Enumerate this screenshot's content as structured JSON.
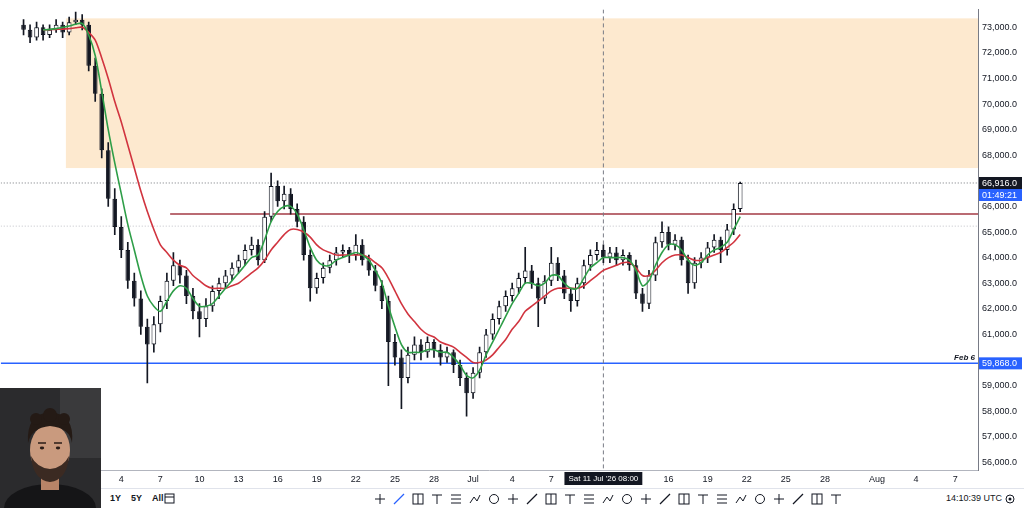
{
  "chart_data": {
    "type": "candlestick",
    "color": "#131722",
    "grid": false,
    "categories": [
      null,
      null,
      null,
      null,
      null,
      null,
      null,
      null,
      null,
      null,
      null,
      null,
      null,
      null,
      null,
      null,
      null,
      null,
      "4",
      null,
      null,
      null,
      null,
      null,
      "7",
      null,
      null,
      null,
      null,
      null,
      "10",
      null,
      null,
      null,
      null,
      null,
      "13",
      null,
      null,
      null,
      null,
      null,
      "16",
      null,
      null,
      null,
      null,
      null,
      "19",
      null,
      null,
      null,
      null,
      null,
      "22",
      null,
      null,
      null,
      null,
      null,
      "25",
      null,
      null,
      null,
      null,
      null,
      "28",
      null,
      null,
      null,
      null,
      null,
      "Jul",
      null,
      null,
      null,
      null,
      null,
      "4",
      null,
      null,
      null,
      null,
      null,
      "7",
      null,
      null,
      null,
      null,
      null,
      null,
      null,
      null,
      null,
      null,
      null,
      null,
      null,
      null,
      null,
      null,
      null,
      "16",
      null,
      null,
      null,
      null,
      null,
      "19",
      null,
      null,
      null,
      null,
      null,
      "22",
      null,
      null,
      null,
      null,
      null,
      "25",
      null,
      null,
      null,
      null,
      null,
      "28",
      null,
      null,
      null,
      null,
      null,
      null,
      null,
      "Aug",
      null,
      null,
      null,
      null,
      null,
      "4",
      null,
      null,
      null,
      null,
      null,
      "7",
      null,
      null,
      null
    ],
    "open": [
      null,
      null,
      null,
      73100,
      72900,
      72600,
      73000,
      72700,
      72900,
      73100,
      72800,
      73200,
      73300,
      73100,
      71500,
      70400,
      68200,
      66300,
      65200,
      64300,
      63100,
      62400,
      61300,
      60600,
      61400,
      62300,
      63100,
      63700,
      63300,
      62500,
      61900,
      61600,
      62100,
      62700,
      63000,
      63300,
      63600,
      63900,
      64300,
      64500,
      63900,
      65600,
      66800,
      66200,
      66500,
      65900,
      65400,
      64100,
      62800,
      63200,
      63600,
      63900,
      64200,
      64300,
      64100,
      64500,
      63900,
      63500,
      62900,
      62300,
      60700,
      60100,
      59300,
      60200,
      60600,
      60300,
      60700,
      60400,
      60100,
      60300,
      59800,
      59300,
      58700,
      59500,
      60300,
      61000,
      61600,
      62100,
      62500,
      62800,
      63200,
      63500,
      63000,
      62400,
      63100,
      63800,
      63300,
      62600,
      62300,
      63000,
      63700,
      64100,
      64300,
      64000,
      64200,
      63900,
      64100,
      63700,
      62600,
      62200,
      63300,
      64600,
      65000,
      64500,
      64700,
      63900,
      63000,
      63800,
      64000,
      64400,
      64700,
      64300,
      65100,
      65900,
      null,
      null,
      null,
      null,
      null,
      null,
      null,
      null,
      null,
      null,
      null,
      null,
      null,
      null,
      null,
      null,
      null,
      null,
      null,
      null,
      null,
      null,
      null,
      null,
      null,
      null,
      null,
      null,
      null,
      null,
      null,
      null,
      null,
      null,
      null,
      null
    ],
    "high": [
      null,
      null,
      null,
      73300,
      73100,
      73200,
      73100,
      73100,
      73300,
      73200,
      73400,
      73600,
      73500,
      73200,
      71800,
      70600,
      68500,
      66700,
      65600,
      64600,
      63400,
      62700,
      61600,
      61700,
      62500,
      63400,
      64200,
      63900,
      63500,
      62800,
      62200,
      62400,
      62900,
      63200,
      63500,
      63800,
      64100,
      64500,
      64800,
      64700,
      65800,
      67300,
      67000,
      66800,
      66700,
      66100,
      65600,
      64300,
      63400,
      63800,
      64100,
      64400,
      64500,
      64400,
      64900,
      64700,
      64100,
      63700,
      63100,
      62500,
      61000,
      60400,
      60500,
      60900,
      60800,
      60900,
      60800,
      60600,
      60500,
      60400,
      60000,
      59500,
      59700,
      60500,
      61200,
      61800,
      62300,
      62700,
      63000,
      63400,
      64400,
      63700,
      63200,
      63300,
      64400,
      64000,
      63500,
      62800,
      63200,
      63900,
      64300,
      64600,
      64500,
      64400,
      64400,
      64300,
      64200,
      63900,
      62800,
      63500,
      64800,
      65400,
      65200,
      64900,
      64800,
      64100,
      64000,
      64200,
      64600,
      64900,
      64800,
      65300,
      66100,
      66950,
      null,
      null,
      null,
      null,
      null,
      null,
      null,
      null,
      null,
      null,
      null,
      null,
      null,
      null,
      null,
      null,
      null,
      null,
      null,
      null,
      null,
      null,
      null,
      null,
      null,
      null,
      null,
      null,
      null,
      null,
      null,
      null,
      null,
      null,
      null,
      null
    ],
    "low": [
      null,
      null,
      null,
      72700,
      72400,
      72500,
      72500,
      72600,
      72800,
      72600,
      72700,
      73100,
      72900,
      71300,
      70100,
      67900,
      66000,
      64900,
      64000,
      62800,
      62100,
      61000,
      59100,
      60300,
      61100,
      62000,
      62900,
      63000,
      62200,
      61600,
      60900,
      61300,
      61900,
      62400,
      62800,
      63100,
      63400,
      63700,
      64100,
      63700,
      63800,
      65400,
      66000,
      65900,
      65700,
      65200,
      63900,
      62300,
      62600,
      63000,
      63400,
      63700,
      64000,
      63800,
      63900,
      63700,
      63300,
      62700,
      62000,
      59000,
      59800,
      58100,
      59100,
      60000,
      60000,
      60100,
      60100,
      59800,
      59900,
      59500,
      59000,
      57800,
      58500,
      59300,
      60100,
      60800,
      61400,
      61900,
      62300,
      62600,
      63000,
      62800,
      61300,
      62200,
      62900,
      63100,
      62400,
      61900,
      62100,
      62800,
      63500,
      63900,
      63800,
      63800,
      63700,
      63700,
      63500,
      62400,
      61900,
      62000,
      63100,
      64400,
      64300,
      64300,
      63700,
      62600,
      62800,
      63600,
      63800,
      64200,
      63800,
      64100,
      64900,
      65800,
      null,
      null,
      null,
      null,
      null,
      null,
      null,
      null,
      null,
      null,
      null,
      null,
      null,
      null,
      null,
      null,
      null,
      null,
      null,
      null,
      null,
      null,
      null,
      null,
      null,
      null,
      null,
      null,
      null,
      null,
      null,
      null,
      null,
      null,
      null,
      null
    ],
    "close": [
      null,
      null,
      null,
      72900,
      72600,
      73000,
      72700,
      72900,
      73100,
      72800,
      73200,
      73300,
      73100,
      71500,
      70400,
      68200,
      66300,
      65200,
      64300,
      63100,
      62400,
      61300,
      60600,
      61400,
      62300,
      63100,
      63700,
      63300,
      62500,
      61900,
      61600,
      62100,
      62700,
      63000,
      63300,
      63600,
      63900,
      64300,
      64500,
      63900,
      65600,
      66800,
      66200,
      66500,
      65900,
      65400,
      64100,
      62800,
      63200,
      63600,
      63900,
      64200,
      64300,
      64100,
      64500,
      63900,
      63500,
      62900,
      62300,
      60700,
      60100,
      59300,
      60200,
      60600,
      60300,
      60700,
      60400,
      60100,
      60300,
      59800,
      59300,
      58700,
      59500,
      60300,
      61000,
      61600,
      62100,
      62500,
      62800,
      63200,
      63500,
      63000,
      62400,
      63100,
      63800,
      63300,
      62600,
      62300,
      63000,
      63700,
      64100,
      64300,
      64000,
      64200,
      63900,
      64100,
      63700,
      62600,
      62200,
      63300,
      64600,
      65000,
      64500,
      64700,
      63900,
      63000,
      63800,
      64000,
      64400,
      64700,
      64300,
      65100,
      65900,
      66916,
      null,
      null,
      null,
      null,
      null,
      null,
      null,
      null,
      null,
      null,
      null,
      null,
      null,
      null,
      null,
      null,
      null,
      null,
      null,
      null,
      null,
      null,
      null,
      null,
      null,
      null,
      null,
      null,
      null,
      null,
      null,
      null,
      null,
      null,
      null,
      null
    ],
    "series": [
      {
        "type": "line",
        "color": "#2e9e48",
        "line_style": "solid",
        "values": [
          null,
          null,
          null,
          null,
          null,
          null,
          72900,
          72920,
          72950,
          73000,
          73050,
          73120,
          73150,
          72700,
          71900,
          70500,
          69000,
          67700,
          66500,
          65300,
          64300,
          63300,
          62500,
          62100,
          61900,
          62300,
          62700,
          62900,
          62800,
          62400,
          62100,
          62100,
          62200,
          62500,
          62800,
          63100,
          63400,
          63700,
          64000,
          64100,
          64700,
          65400,
          65800,
          66000,
          66000,
          65700,
          65100,
          64400,
          63900,
          63700,
          63700,
          63900,
          64000,
          64100,
          64200,
          64100,
          63900,
          63500,
          63000,
          62100,
          61300,
          60600,
          60300,
          60300,
          60300,
          60400,
          60400,
          60300,
          60300,
          60100,
          59800,
          59400,
          59300,
          59600,
          60200,
          60700,
          61200,
          61700,
          62200,
          62600,
          63000,
          63000,
          62900,
          63000,
          63300,
          63300,
          63000,
          62800,
          62800,
          63200,
          63600,
          63800,
          64000,
          64000,
          64000,
          64000,
          63900,
          63500,
          62900,
          63100,
          63700,
          64200,
          64500,
          64500,
          64300,
          63900,
          63700,
          63800,
          64100,
          64300,
          64400,
          64600,
          65100,
          65600,
          null,
          null,
          null,
          null,
          null,
          null,
          null,
          null,
          null,
          null,
          null,
          null,
          null,
          null,
          null,
          null,
          null,
          null,
          null,
          null,
          null,
          null,
          null,
          null,
          null,
          null,
          null,
          null,
          null,
          null,
          null,
          null,
          null,
          null,
          null,
          null
        ]
      },
      {
        "type": "line",
        "color": "#d1343f",
        "line_style": "solid",
        "values": [
          null,
          null,
          null,
          null,
          null,
          null,
          72900,
          72910,
          72920,
          72930,
          72950,
          72980,
          73000,
          72800,
          72500,
          71800,
          71000,
          70100,
          69300,
          68400,
          67500,
          66600,
          65800,
          65100,
          64500,
          64200,
          63900,
          63700,
          63600,
          63300,
          63100,
          62900,
          62800,
          62800,
          62800,
          62900,
          63000,
          63200,
          63400,
          63600,
          63900,
          64300,
          64600,
          64900,
          65100,
          65100,
          65000,
          64800,
          64500,
          64300,
          64200,
          64100,
          64100,
          64100,
          64100,
          64100,
          64000,
          63800,
          63600,
          63200,
          62700,
          62200,
          61800,
          61500,
          61200,
          61000,
          60900,
          60700,
          60600,
          60500,
          60300,
          60100,
          59900,
          59900,
          60000,
          60200,
          60500,
          60800,
          61200,
          61500,
          61900,
          62100,
          62300,
          62500,
          62700,
          62800,
          62800,
          62800,
          62800,
          62900,
          63100,
          63300,
          63500,
          63600,
          63700,
          63800,
          63800,
          63600,
          63300,
          63300,
          63500,
          63800,
          64000,
          64100,
          64100,
          64000,
          63900,
          63900,
          64000,
          64100,
          64200,
          64400,
          64600,
          64900,
          null,
          null,
          null,
          null,
          null,
          null,
          null,
          null,
          null,
          null,
          null,
          null,
          null,
          null,
          null,
          null,
          null,
          null,
          null,
          null,
          null,
          null,
          null,
          null,
          null,
          null,
          null,
          null,
          null,
          null,
          null,
          null,
          null,
          null,
          null,
          null
        ]
      }
    ],
    "ylim": [
      55700,
      73700
    ],
    "yticks": [
      {
        "value": 56000,
        "label": "56,000.0"
      },
      {
        "value": 57000,
        "label": "57,000.0"
      },
      {
        "value": 58000,
        "label": "58,000.0"
      },
      {
        "value": 59000,
        "label": "59,000.0"
      },
      {
        "value": 61000,
        "label": "61,000.0"
      },
      {
        "value": 62000,
        "label": "62,000.0"
      },
      {
        "value": 63000,
        "label": "63,000.0"
      },
      {
        "value": 64000,
        "label": "64,000.0"
      },
      {
        "value": 65000,
        "label": "65,000.0"
      },
      {
        "value": 66000,
        "label": "66,000.0"
      },
      {
        "value": 68000,
        "label": "68,000.0"
      },
      {
        "value": 69000,
        "label": "69,000.0"
      },
      {
        "value": 70000,
        "label": "70,000.0"
      },
      {
        "value": 71000,
        "label": "71,000.0"
      },
      {
        "value": 72000,
        "label": "72,000.0"
      },
      {
        "value": 73000,
        "label": "73,000.0"
      }
    ],
    "annotations": [
      {
        "type": "zone",
        "from": 67500,
        "to": 73350,
        "start": 10,
        "color": "#fde9cf"
      },
      {
        "type": "hline",
        "value": 65700,
        "start": 26,
        "color": "#a33a45",
        "line_style": "solid"
      },
      {
        "type": "hline",
        "value": 65230,
        "color": "#9598a1",
        "line_style": "dotted"
      },
      {
        "type": "hline",
        "value": 59868,
        "color": "#2962ff",
        "line_style": "solid",
        "label": "59,868.0",
        "text": "Feb 6"
      },
      {
        "type": "hline",
        "value": 66916,
        "color": "#131722",
        "line_style": "dotted",
        "label": "66,916.0",
        "sublabel": "01:49:21"
      },
      {
        "type": "vline",
        "at": 92,
        "color": "#787b86",
        "line_style": "dashed",
        "label": "Sat 11 Jul '26 08:00"
      }
    ]
  },
  "toolbar": {
    "ranges": [
      "1Y",
      "5Y",
      "All"
    ],
    "time": "14:10:39 UTC"
  }
}
